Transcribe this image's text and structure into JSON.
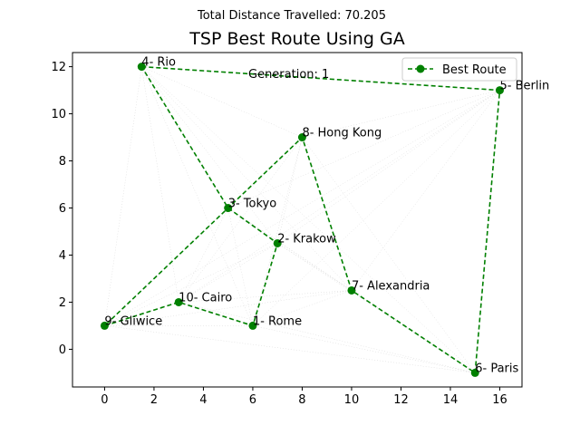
{
  "chart_data": {
    "type": "line",
    "suptitle": "Total Distance Travelled: 70.205",
    "title": "TSP Best Route Using GA",
    "annotation": "Generation: 1",
    "xlim": [
      -1.3,
      16.9
    ],
    "ylim": [
      -1.6,
      12.6
    ],
    "xticks": [
      0,
      2,
      4,
      6,
      8,
      10,
      12,
      14,
      16
    ],
    "yticks": [
      0,
      2,
      4,
      6,
      8,
      10,
      12
    ],
    "grid": false,
    "legend": {
      "entries": [
        "Best Route"
      ],
      "location": "upper right"
    },
    "colors": {
      "route": "#008000",
      "background_edges": "#bbbbbb"
    },
    "cities": [
      {
        "label": "1- Rome",
        "x": 6,
        "y": 1
      },
      {
        "label": "2- Krakow",
        "x": 7,
        "y": 4.5
      },
      {
        "label": "3- Tokyo",
        "x": 5,
        "y": 6
      },
      {
        "label": "4- Rio",
        "x": 1.5,
        "y": 12
      },
      {
        "label": "5- Berlin",
        "x": 16,
        "y": 11
      },
      {
        "label": "6- Paris",
        "x": 15,
        "y": -1
      },
      {
        "label": "7- Alexandria",
        "x": 10,
        "y": 2.5
      },
      {
        "label": "8- Hong Kong",
        "x": 8,
        "y": 9
      },
      {
        "label": "9- Gliwice",
        "x": 0,
        "y": 1
      },
      {
        "label": "10- Cairo",
        "x": 3,
        "y": 2
      }
    ],
    "series": [
      {
        "name": "Best Route",
        "route_order": [
          "4- Rio",
          "5- Berlin",
          "6- Paris",
          "7- Alexandria",
          "8- Hong Kong",
          "9- Gliwice",
          "10- Cairo",
          "1- Rome",
          "2- Krakow",
          "3- Tokyo",
          "4- Rio"
        ],
        "x": [
          1.5,
          16,
          15,
          10,
          8,
          0,
          3,
          6,
          7,
          5,
          1.5
        ],
        "y": [
          12,
          11,
          -1,
          2.5,
          9,
          1,
          2,
          1,
          4.5,
          6,
          12
        ]
      }
    ]
  }
}
